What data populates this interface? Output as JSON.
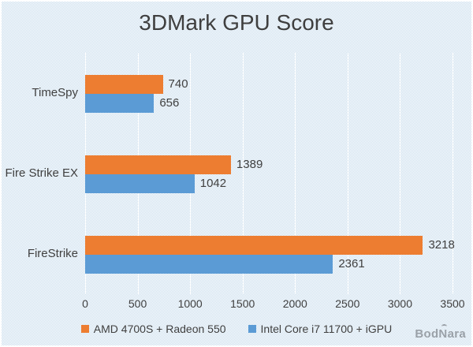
{
  "title": "3DMark GPU Score",
  "watermark": "BodNara",
  "chart_data": {
    "type": "bar",
    "orientation": "horizontal",
    "title": "3DMark GPU Score",
    "categories": [
      "TimeSpy",
      "Fire Strike EX",
      "FireStrike"
    ],
    "series": [
      {
        "name": "AMD 4700S + Radeon 550",
        "color": "#ED7D31",
        "values": [
          740,
          1389,
          3218
        ]
      },
      {
        "name": "Intel Core i7 11700 + iGPU",
        "color": "#5B9BD5",
        "values": [
          656,
          1042,
          2361
        ]
      }
    ],
    "x_ticks": [
      0,
      500,
      1000,
      1500,
      2000,
      2500,
      3000,
      3500
    ],
    "xlim": [
      0,
      3500
    ],
    "xlabel": "",
    "ylabel": "",
    "grid": "vertical",
    "gridline_color": "#FFFFFF",
    "legend_position": "bottom",
    "data_labels": true,
    "text_color": "#404040",
    "background": "dotted-light-blue"
  },
  "colors": {
    "title_text": "#3F3F3F",
    "label_text": "#404040",
    "background_dot": "#C9DDED",
    "watermark": "#9AA1A8"
  }
}
